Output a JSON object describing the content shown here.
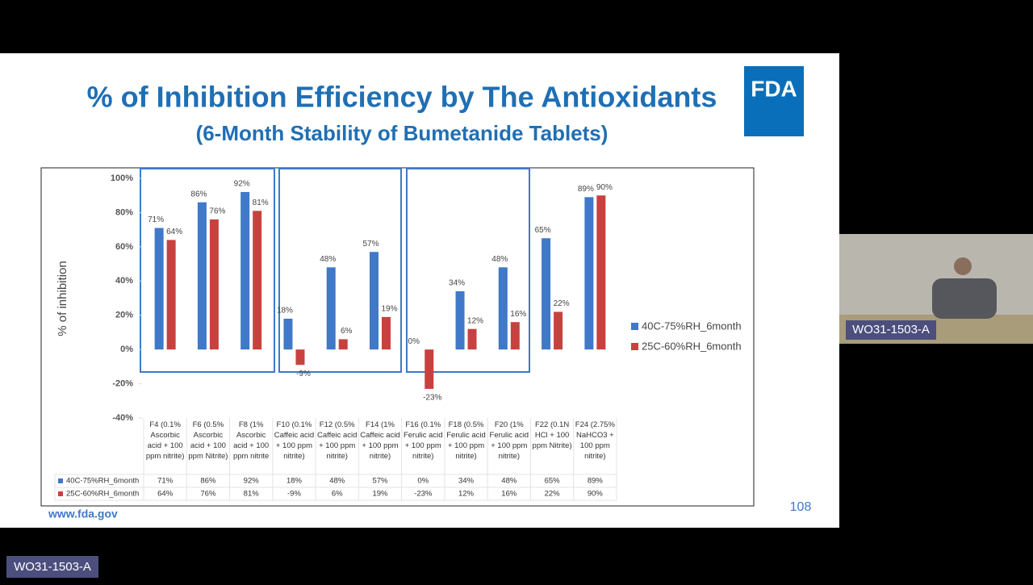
{
  "slide": {
    "title": "% of Inhibition Efficiency by The Antioxidants",
    "subtitle": "(6-Month Stability of Bumetanide Tablets)",
    "logo": "FDA",
    "footer_url": "www.fda.gov",
    "page_number": "108"
  },
  "speaker_video": {
    "label": "WO31-1503-A"
  },
  "room_label": "WO31-1503-A",
  "chart_data": {
    "type": "bar",
    "y_label": "% of inhibition",
    "categories": [
      "F4 (0.1% Ascorbic acid + 100 ppm nitrite)",
      "F6 (0.5% Ascorbic acid + 100 ppm Nitrite)",
      "F8 (1% Ascorbic acid + 100 ppm nitrite",
      "F10 (0.1% Caffeic acid + 100 ppm nitrite)",
      "F12 (0.5% Caffeic acid + 100 ppm nitrite)",
      "F14 (1% Caffeic acid + 100 ppm nitrite)",
      "F16 (0.1% Ferulic acid + 100 ppm nitrite)",
      "F18 (0.5% Ferulic acid + 100 ppm nitrite)",
      "F20 (1% Ferulic acid + 100 ppm nitrite)",
      "F22 (0.1N HCl + 100 ppm Nitrite)",
      "F24 (2.75% NaHCO3 + 100 ppm nitrite)"
    ],
    "series": [
      {
        "name": "40C-75%RH_6month",
        "color": "#3f79c7",
        "values": [
          71,
          86,
          92,
          18,
          48,
          57,
          0,
          34,
          48,
          65,
          89
        ],
        "value_labels": [
          "71%",
          "86%",
          "92%",
          "18%",
          "48%",
          "57%",
          "0%",
          "34%",
          "48%",
          "65%",
          "89%"
        ]
      },
      {
        "name": "25C-60%RH_6month",
        "color": "#c9413f",
        "values": [
          64,
          76,
          81,
          -9,
          6,
          19,
          -23,
          12,
          16,
          22,
          90
        ],
        "value_labels": [
          "64%",
          "76%",
          "81%",
          "-9%",
          "6%",
          "19%",
          "-23%",
          "12%",
          "16%",
          "22%",
          "90%"
        ]
      }
    ],
    "ylim": [
      -40,
      100
    ],
    "yticks": [
      {
        "value": -40,
        "label": "-40%"
      },
      {
        "value": -20,
        "label": "-20%"
      },
      {
        "value": 0,
        "label": "0%"
      },
      {
        "value": 20,
        "label": "20%"
      },
      {
        "value": 40,
        "label": "40%"
      },
      {
        "value": 60,
        "label": "60%"
      },
      {
        "value": 80,
        "label": "80%"
      },
      {
        "value": 100,
        "label": "100%"
      }
    ],
    "grid": false,
    "legend": "right"
  }
}
